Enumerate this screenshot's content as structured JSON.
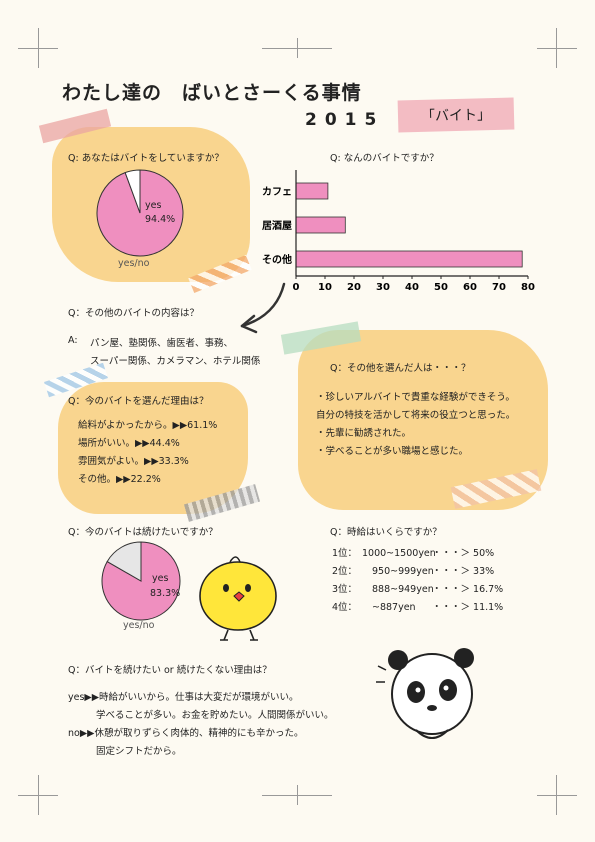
{
  "header": {
    "title": "わたし達の　ばいとさーくる事情",
    "year": "2015",
    "tag": "「バイト」"
  },
  "q1": {
    "question": "Q: あなたはバイトをしていますか？",
    "caption": "yes/no",
    "yes_label": "yes",
    "yes_pct": "94.4%"
  },
  "q2": {
    "question": "Q: なんのバイトですか？"
  },
  "q3": {
    "question": "Q：その他のバイトの内容は？",
    "answer_prefix": "A:",
    "line1": "パン屋、塾関係、歯医者、事務、",
    "line2": "スーパー関係、カメラマン、ホテル関係"
  },
  "q4": {
    "question": "Q：今のバイトを選んだ理由は？",
    "items": [
      "給料がよかったから。▶▶61.1%",
      "場所がいい。▶▶44.4%",
      "雰囲気がよい。▶▶33.3%",
      "その他。▶▶22.2%"
    ]
  },
  "q5": {
    "question": "Q：その他を選んだ人は・・・？",
    "items": [
      "・珍しいアルバイトで貴重な経験ができそう。",
      "自分の特技を活かして将来の役立つと思った。",
      "・先輩に勧誘された。",
      "・学べることが多い職場と感じた。"
    ]
  },
  "q6": {
    "question": "Q：今のバイトは続けたいですか？",
    "caption": "yes/no",
    "yes_label": "yes",
    "yes_pct": "83.3%"
  },
  "q7": {
    "question": "Q：時給はいくらですか？",
    "rows": [
      {
        "rank": "1位：",
        "range": "1000~1500yen",
        "pct": "・・・＞ 50%"
      },
      {
        "rank": "2位：",
        "range": "950~999yen",
        "pct": "・・・＞ 33%"
      },
      {
        "rank": "3位：",
        "range": "888~949yen",
        "pct": "・・・＞ 16.7%"
      },
      {
        "rank": "4位：",
        "range": "~887yen",
        "pct": "・・・＞ 11.1%"
      }
    ]
  },
  "q8": {
    "question": "Q：バイトを続けたい or 続けたくない理由は？",
    "yes_line1": "yes▶▶時給がいいから。仕事は大変だが環境がいい。",
    "yes_line2": "学べることが多い。お金を貯めたい。人間関係がいい。",
    "no_line1": "no▶▶休憩が取りずらく肉体的、精神的にも辛かった。",
    "no_line2": "固定シフトだから。"
  },
  "colors": {
    "pink": "#ef8fbf",
    "orange": "#f9d58f",
    "gray": "#e6e6e6"
  },
  "chart_data": [
    {
      "type": "pie",
      "labels": [
        "yes",
        "no"
      ],
      "values": [
        94.4,
        5.6
      ],
      "colors": [
        "#ef8fbf",
        "#ffffff"
      ]
    },
    {
      "type": "bar",
      "orientation": "horizontal",
      "categories": [
        "カフェ",
        "居酒屋",
        "その他"
      ],
      "values": [
        11,
        17,
        78
      ],
      "xlim": [
        0,
        80
      ],
      "xticks": [
        0,
        10,
        20,
        30,
        40,
        50,
        60,
        70,
        80
      ],
      "color": "#ef8fbf"
    },
    {
      "type": "pie",
      "labels": [
        "yes",
        "no"
      ],
      "values": [
        83.3,
        16.7
      ],
      "colors": [
        "#ef8fbf",
        "#e6e6e6"
      ]
    }
  ]
}
